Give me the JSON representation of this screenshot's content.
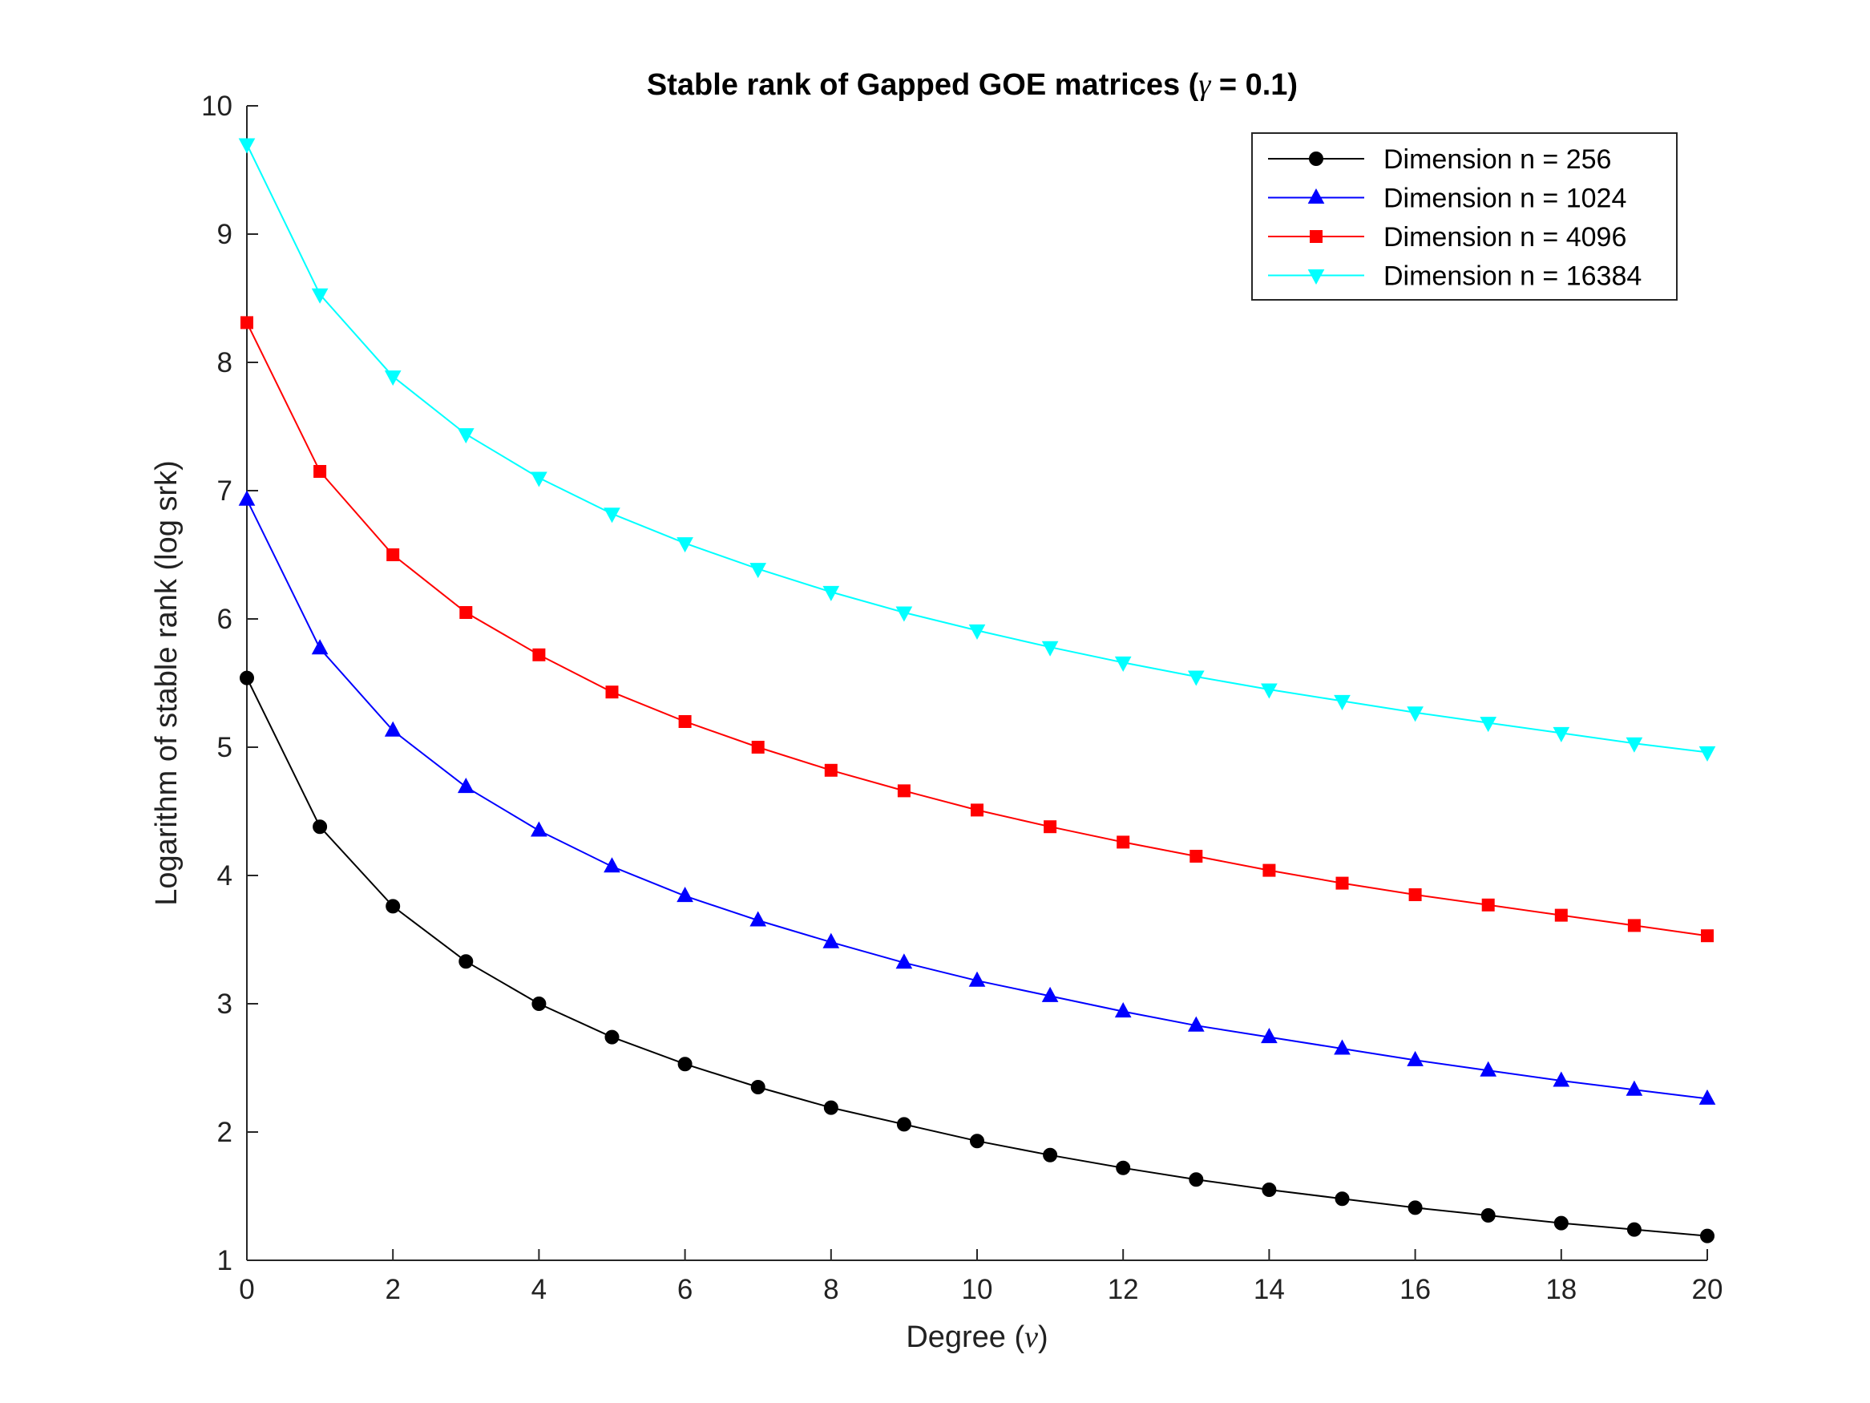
{
  "chart_data": {
    "type": "line",
    "title_prefix": "Stable rank of Gapped GOE matrices (",
    "title_symbol": "γ",
    "title_suffix": " = 0.1)",
    "xlabel_prefix": "Degree (",
    "xlabel_symbol": "ν",
    "xlabel_suffix": ")",
    "ylabel": "Logarithm of stable rank (log srk)",
    "xlim": [
      0,
      20
    ],
    "ylim": [
      1,
      10
    ],
    "xticks": [
      0,
      2,
      4,
      6,
      8,
      10,
      12,
      14,
      16,
      18,
      20
    ],
    "yticks": [
      1,
      2,
      3,
      4,
      5,
      6,
      7,
      8,
      9,
      10
    ],
    "grid": false,
    "legend_position": "top-right",
    "x": [
      0,
      1,
      2,
      3,
      4,
      5,
      6,
      7,
      8,
      9,
      10,
      11,
      12,
      13,
      14,
      15,
      16,
      17,
      18,
      19,
      20
    ],
    "series": [
      {
        "name": "Dimension n = 256",
        "color": "#000000",
        "marker": "circle",
        "values": [
          5.54,
          4.38,
          3.76,
          3.33,
          3.0,
          2.74,
          2.53,
          2.35,
          2.19,
          2.06,
          1.93,
          1.82,
          1.72,
          1.63,
          1.55,
          1.48,
          1.41,
          1.35,
          1.29,
          1.24,
          1.19
        ]
      },
      {
        "name": "Dimension n = 1024",
        "color": "#0000ff",
        "marker": "triangle-up",
        "values": [
          6.93,
          5.77,
          5.13,
          4.69,
          4.35,
          4.07,
          3.84,
          3.65,
          3.48,
          3.32,
          3.18,
          3.06,
          2.94,
          2.83,
          2.74,
          2.65,
          2.56,
          2.48,
          2.4,
          2.33,
          2.26
        ]
      },
      {
        "name": "Dimension n = 4096",
        "color": "#ff0000",
        "marker": "square",
        "values": [
          8.31,
          7.15,
          6.5,
          6.05,
          5.72,
          5.43,
          5.2,
          5.0,
          4.82,
          4.66,
          4.51,
          4.38,
          4.26,
          4.15,
          4.04,
          3.94,
          3.85,
          3.77,
          3.69,
          3.61,
          3.53
        ]
      },
      {
        "name": "Dimension n = 16384",
        "color": "#00ffff",
        "marker": "triangle-down",
        "values": [
          9.7,
          8.53,
          7.89,
          7.44,
          7.1,
          6.82,
          6.59,
          6.39,
          6.21,
          6.05,
          5.91,
          5.78,
          5.66,
          5.55,
          5.45,
          5.36,
          5.27,
          5.19,
          5.11,
          5.03,
          4.96
        ]
      }
    ]
  }
}
